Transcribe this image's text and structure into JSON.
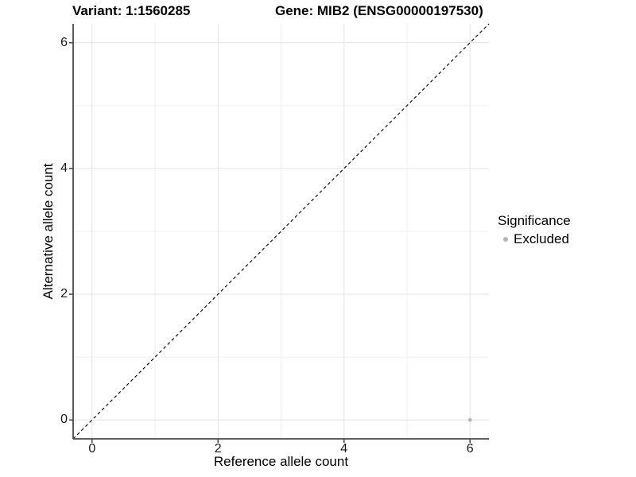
{
  "titles": {
    "variant": "Variant: 1:1560285",
    "gene": "Gene: MIB2 (ENSG00000197530)"
  },
  "chart_data": {
    "type": "scatter",
    "xlabel": "Reference allele count",
    "ylabel": "Alternative allele count",
    "xlim": [
      -0.3,
      6.3
    ],
    "ylim": [
      -0.3,
      6.3
    ],
    "x_ticks": [
      0,
      2,
      4,
      6
    ],
    "y_ticks": [
      0,
      2,
      4,
      6
    ],
    "x_minor_ticks": [
      1,
      3,
      5
    ],
    "y_minor_ticks": [
      1,
      3,
      5
    ],
    "grid": true,
    "identity_line": {
      "style": "dashed",
      "from": [
        -0.3,
        -0.3
      ],
      "to": [
        6.3,
        6.3
      ]
    },
    "series": [
      {
        "name": "Excluded",
        "color": "#b5b5b5",
        "points": [
          {
            "x": 6,
            "y": 0
          }
        ]
      }
    ],
    "legend": {
      "title": "Significance",
      "position": "right",
      "items": [
        {
          "label": "Excluded",
          "color": "#b5b5b5"
        }
      ]
    }
  },
  "colors": {
    "background": "#ffffff",
    "axis_line": "#4a4a4a",
    "grid_major": "#e3e3e3",
    "grid_minor": "#efefef",
    "identity_line": "#111111",
    "text": "#000000",
    "point": "#b5b5b5"
  }
}
